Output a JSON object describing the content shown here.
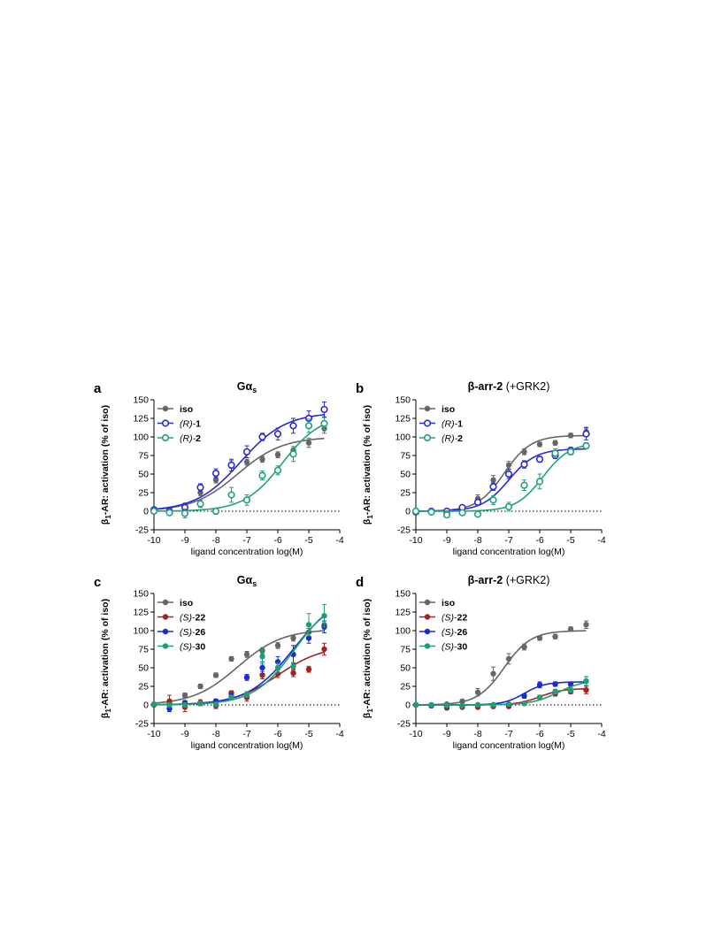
{
  "chart_data": [
    {
      "type": "scatter",
      "panel_letter": "a",
      "title": {
        "main": "Gα",
        "sub": "s",
        "suffix": ""
      },
      "xlabel": "ligand concentration log(M)",
      "ylabel": {
        "pre": "β",
        "sub": "1",
        "post": "-AR: activation (% of iso)"
      },
      "xlim": [
        -10,
        -4
      ],
      "ylim": [
        -25,
        150
      ],
      "xticks": [
        "-10",
        "-9",
        "-8",
        "-7",
        "-6",
        "-5",
        "-4"
      ],
      "yticks": [
        "-25",
        "0",
        "25",
        "50",
        "75",
        "100",
        "125",
        "150"
      ],
      "legend_position": "top-left",
      "series": [
        {
          "name": "iso",
          "name_style": "bold",
          "color": "#666666",
          "marker": "filled",
          "x": [
            -10,
            -9.5,
            -9,
            -8.5,
            -8,
            -7.5,
            -7,
            -6.5,
            -6,
            -5.5,
            -5,
            -4.5
          ],
          "y": [
            1,
            2,
            8,
            25,
            42,
            63,
            66,
            70,
            76,
            82,
            92,
            111
          ],
          "err": [
            1,
            2,
            3,
            4,
            4,
            5,
            4,
            4,
            4,
            5,
            6,
            6
          ],
          "fit": {
            "bottom": 0,
            "top": 100,
            "logec50": -7.3,
            "hill": 0.6
          }
        },
        {
          "name": [
            "(R)-",
            "1"
          ],
          "name_style": "mixed",
          "color": "#2b2bd2",
          "marker": "open",
          "x": [
            -10,
            -9.5,
            -9,
            -8.5,
            -8,
            -7.5,
            -7,
            -6.5,
            -6,
            -5.5,
            -5,
            -4.5
          ],
          "y": [
            2,
            0,
            5,
            32,
            51,
            62,
            80,
            100,
            104,
            115,
            125,
            137
          ],
          "err": [
            1,
            2,
            4,
            5,
            6,
            8,
            8,
            5,
            8,
            10,
            10,
            10
          ],
          "fit": {
            "bottom": 0,
            "top": 133,
            "logec50": -7.2,
            "hill": 0.6
          }
        },
        {
          "name": [
            "(R)-",
            "2"
          ],
          "name_style": "mixed",
          "color": "#22a07a",
          "marker": "open",
          "x": [
            -10,
            -9.5,
            -9,
            -8.5,
            -8,
            -7.5,
            -7,
            -6.5,
            -6,
            -5.5,
            -5,
            -4.5
          ],
          "y": [
            0,
            -2,
            -3,
            10,
            0,
            22,
            15,
            48,
            55,
            77,
            115,
            118
          ],
          "err": [
            1,
            3,
            6,
            5,
            4,
            10,
            7,
            6,
            6,
            10,
            9,
            8
          ],
          "fit": {
            "bottom": 0,
            "top": 130,
            "logec50": -5.85,
            "hill": 0.7
          }
        }
      ]
    },
    {
      "type": "scatter",
      "panel_letter": "b",
      "title": {
        "main": "β-arr-2",
        "sub": "",
        "suffix": " (+GRK2)"
      },
      "xlabel": "ligand concentration log(M)",
      "ylabel": {
        "pre": "β",
        "sub": "1",
        "post": "-AR: activation (% of iso)"
      },
      "xlim": [
        -10,
        -4
      ],
      "ylim": [
        -25,
        150
      ],
      "xticks": [
        "-10",
        "-9",
        "-8",
        "-7",
        "-6",
        "-5",
        "-4"
      ],
      "yticks": [
        "-25",
        "0",
        "25",
        "50",
        "75",
        "100",
        "125",
        "150"
      ],
      "legend_position": "top-left",
      "series": [
        {
          "name": "iso",
          "name_style": "bold",
          "color": "#666666",
          "marker": "filled",
          "x": [
            -10,
            -9.5,
            -9,
            -8.5,
            -8,
            -7.5,
            -7,
            -6.5,
            -6,
            -5.5,
            -5,
            -4.5
          ],
          "y": [
            0,
            0,
            1,
            5,
            17,
            42,
            62,
            80,
            90,
            92,
            102,
            107
          ],
          "err": [
            1,
            1,
            1,
            2,
            5,
            6,
            5,
            4,
            3,
            3,
            3,
            6
          ],
          "fit": {
            "bottom": 0,
            "top": 102,
            "logec50": -7.15,
            "hill": 1.0
          }
        },
        {
          "name": [
            "(R)-",
            "1"
          ],
          "name_style": "mixed",
          "color": "#2b2bd2",
          "marker": "open",
          "x": [
            -10,
            -9.5,
            -9,
            -8.5,
            -8,
            -7.5,
            -7,
            -6.5,
            -6,
            -5.5,
            -5,
            -4.5
          ],
          "y": [
            -1,
            0,
            0,
            5,
            12,
            33,
            50,
            63,
            70,
            75,
            82,
            104
          ],
          "err": [
            1,
            1,
            1,
            3,
            4,
            5,
            6,
            5,
            4,
            4,
            4,
            8
          ],
          "fit": {
            "bottom": 0,
            "top": 84,
            "logec50": -7.0,
            "hill": 1.0
          }
        },
        {
          "name": [
            "(R)-",
            "2"
          ],
          "name_style": "mixed",
          "color": "#22a07a",
          "marker": "open",
          "x": [
            -10,
            -9.5,
            -9,
            -8.5,
            -8,
            -7.5,
            -7,
            -6.5,
            -6,
            -5.5,
            -5,
            -4.5
          ],
          "y": [
            0,
            -1,
            -5,
            -2,
            -4,
            15,
            6,
            35,
            40,
            78,
            80,
            88
          ],
          "err": [
            1,
            1,
            2,
            3,
            2,
            6,
            6,
            7,
            10,
            6,
            4,
            4
          ],
          "fit": {
            "bottom": 0,
            "top": 92,
            "logec50": -5.9,
            "hill": 1.0
          }
        }
      ]
    },
    {
      "type": "scatter",
      "panel_letter": "c",
      "title": {
        "main": "Gα",
        "sub": "s",
        "suffix": ""
      },
      "xlabel": "ligand concentration log(M)",
      "ylabel": {
        "pre": "β",
        "sub": "1",
        "post": "-AR: activation (% of iso)"
      },
      "xlim": [
        -10,
        -4
      ],
      "ylim": [
        -25,
        150
      ],
      "xticks": [
        "-10",
        "-9",
        "-8",
        "-7",
        "-6",
        "-5",
        "-4"
      ],
      "yticks": [
        "-25",
        "0",
        "25",
        "50",
        "75",
        "100",
        "125",
        "150"
      ],
      "legend_position": "top-left",
      "series": [
        {
          "name": "iso",
          "name_style": "bold",
          "color": "#666666",
          "marker": "filled",
          "x": [
            -10,
            -9.5,
            -9,
            -8.5,
            -8,
            -7.5,
            -7,
            -6.5,
            -6,
            -5.5,
            -5,
            -4.5
          ],
          "y": [
            1,
            3,
            13,
            25,
            40,
            62,
            68,
            73,
            80,
            90,
            98,
            108
          ],
          "err": [
            1,
            2,
            3,
            3,
            3,
            3,
            4,
            4,
            4,
            4,
            5,
            5
          ],
          "fit": {
            "bottom": 0,
            "top": 102,
            "logec50": -7.3,
            "hill": 0.6
          }
        },
        {
          "name": [
            "(S)-",
            "22"
          ],
          "name_style": "mixed",
          "color": "#a52222",
          "marker": "filled",
          "x": [
            -10,
            -9.5,
            -9,
            -8.5,
            -8,
            -7.5,
            -7,
            -6.5,
            -6,
            -5.5,
            -5,
            -4.5
          ],
          "y": [
            0,
            5,
            -3,
            3,
            -1,
            16,
            10,
            40,
            42,
            43,
            48,
            75
          ],
          "err": [
            1,
            8,
            6,
            4,
            4,
            3,
            5,
            5,
            5,
            5,
            4,
            8
          ],
          "fit": {
            "bottom": 0,
            "top": 80,
            "logec50": -6.0,
            "hill": 0.6
          }
        },
        {
          "name": [
            "(S)-",
            "26"
          ],
          "name_style": "mixed",
          "color": "#1a2bd6",
          "marker": "filled",
          "x": [
            -9.5,
            -9,
            -8.5,
            -8,
            -7.5,
            -7,
            -6.5,
            -6,
            -5.5,
            -5,
            -4.5
          ],
          "y": [
            -5,
            3,
            2,
            5,
            12,
            37,
            50,
            58,
            68,
            90,
            105
          ],
          "err": [
            4,
            3,
            2,
            3,
            3,
            4,
            8,
            7,
            12,
            7,
            8
          ],
          "fit": {
            "bottom": 0,
            "top": 150,
            "logec50": -5.5,
            "hill": 0.6
          }
        },
        {
          "name": [
            "(S)-",
            "30"
          ],
          "name_style": "mixed",
          "color": "#1f9e72",
          "marker": "filled",
          "x": [
            -10,
            -9.5,
            -9,
            -8.5,
            -8,
            -7.5,
            -7,
            -6.5,
            -6,
            -5.5,
            -5,
            -4.5
          ],
          "y": [
            1,
            0,
            0,
            2,
            1,
            10,
            14,
            65,
            50,
            52,
            108,
            120
          ],
          "err": [
            1,
            2,
            2,
            2,
            2,
            3,
            4,
            10,
            6,
            5,
            15,
            15
          ],
          "fit": {
            "bottom": 0,
            "top": 150,
            "logec50": -5.45,
            "hill": 0.65
          }
        }
      ]
    },
    {
      "type": "scatter",
      "panel_letter": "d",
      "title": {
        "main": "β-arr-2",
        "sub": "",
        "suffix": " (+GRK2)"
      },
      "xlabel": "ligand concentration log(M)",
      "ylabel": {
        "pre": "β",
        "sub": "1",
        "post": "-AR: activation (% of iso)"
      },
      "xlim": [
        -10,
        -4
      ],
      "ylim": [
        -25,
        150
      ],
      "xticks": [
        "-10",
        "-9",
        "-8",
        "-7",
        "-6",
        "-5",
        "-4"
      ],
      "yticks": [
        "-25",
        "0",
        "25",
        "50",
        "75",
        "100",
        "125",
        "150"
      ],
      "legend_position": "top-left",
      "series": [
        {
          "name": "iso",
          "name_style": "bold",
          "color": "#666666",
          "marker": "filled",
          "x": [
            -10,
            -9.5,
            -9,
            -8.5,
            -8,
            -7.5,
            -7,
            -6.5,
            -6,
            -5.5,
            -5,
            -4.5
          ],
          "y": [
            0,
            0,
            1,
            5,
            17,
            42,
            62,
            78,
            90,
            92,
            102,
            108
          ],
          "err": [
            1,
            1,
            1,
            2,
            5,
            9,
            7,
            4,
            3,
            3,
            3,
            5
          ],
          "fit": {
            "bottom": 0,
            "top": 100,
            "logec50": -7.15,
            "hill": 1.0
          }
        },
        {
          "name": [
            "(S)-",
            "22"
          ],
          "name_style": "mixed",
          "color": "#a52222",
          "marker": "filled",
          "x": [
            -10,
            -9.5,
            -9,
            -8.5,
            -8,
            -7.5,
            -7,
            -6.5,
            -6,
            -5.5,
            -5,
            -4.5
          ],
          "y": [
            0,
            -1,
            -4,
            -3,
            -3,
            -2,
            -2,
            2,
            10,
            15,
            18,
            20
          ],
          "err": [
            1,
            1,
            2,
            2,
            2,
            2,
            2,
            2,
            3,
            3,
            3,
            5
          ],
          "fit": {
            "bottom": 0,
            "top": 22,
            "logec50": -6.0,
            "hill": 1.2
          }
        },
        {
          "name": [
            "(S)-",
            "26"
          ],
          "name_style": "mixed",
          "color": "#1a2bd6",
          "marker": "filled",
          "x": [
            -10,
            -9.5,
            -9,
            -8.5,
            -8,
            -7.5,
            -7,
            -6.5,
            -6,
            -5.5,
            -5,
            -4.5
          ],
          "y": [
            0,
            -1,
            -2,
            -1,
            0,
            0,
            1,
            12,
            27,
            28,
            28,
            32
          ],
          "err": [
            1,
            1,
            1,
            1,
            1,
            1,
            2,
            3,
            4,
            3,
            3,
            6
          ],
          "fit": {
            "bottom": 0,
            "top": 31,
            "logec50": -6.5,
            "hill": 1.3
          }
        },
        {
          "name": [
            "(S)-",
            "30"
          ],
          "name_style": "mixed",
          "color": "#1f9e72",
          "marker": "filled",
          "x": [
            -10,
            -9.5,
            -9,
            -8.5,
            -8,
            -7.5,
            -7,
            -6.5,
            -6,
            -5.5,
            -5,
            -4.5
          ],
          "y": [
            0,
            0,
            -1,
            -1,
            0,
            0,
            1,
            2,
            10,
            18,
            20,
            32
          ],
          "err": [
            1,
            1,
            1,
            1,
            1,
            1,
            1,
            2,
            2,
            3,
            3,
            6
          ],
          "fit": {
            "bottom": 0,
            "top": 34,
            "logec50": -5.4,
            "hill": 1.0
          }
        }
      ]
    }
  ]
}
